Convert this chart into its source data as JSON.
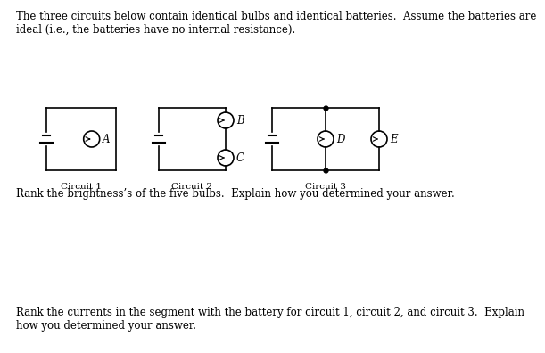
{
  "bg_color": "#ffffff",
  "text_color": "#000000",
  "title_text": "The three circuits below contain identical bulbs and identical batteries.  Assume the batteries are\nideal (i.e., the batteries have no internal resistance).",
  "question1": "Rank the brightness’s of the five bulbs.  Explain how you determined your answer.",
  "question2": "Rank the currents in the segment with the battery for circuit 1, circuit 2, and circuit 3.  Explain\nhow you determined your answer.",
  "circuit1_label": "Circuit 1",
  "circuit2_label": "Circuit 2",
  "circuit3_label": "Circuit 3",
  "font_size_text": 8.5,
  "font_size_bulb_label": 8.5,
  "font_size_circuit_label": 7.5,
  "lw_wire": 1.2,
  "lw_battery": 1.5,
  "lw_bulb": 1.2,
  "bulb_r": 9
}
